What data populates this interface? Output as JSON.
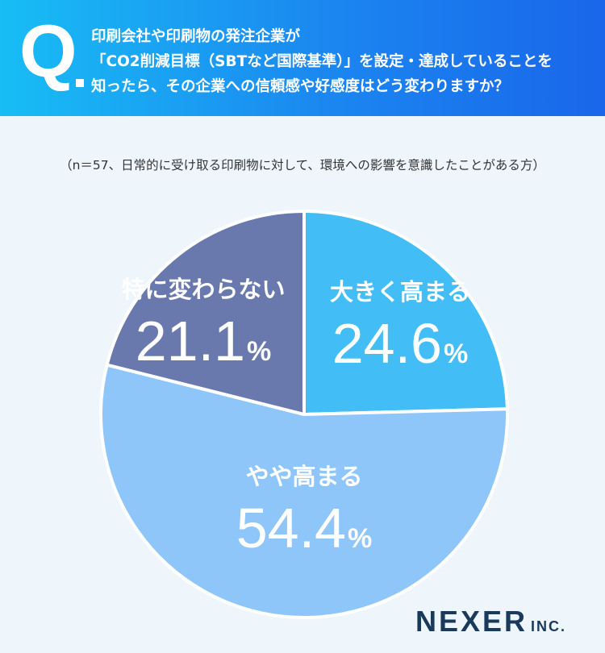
{
  "header": {
    "q_mark": "Q",
    "question_lines": [
      "印刷会社や印刷物の発注企業が",
      "「CO2削減目標（SBTなど国際基準）」を設定・達成していることを",
      "知ったら、その企業への信頼感や好感度はどう変わりますか？"
    ]
  },
  "note": "（n＝57、日常的に受け取る印刷物に対して、環境への影響を意識したことがある方）",
  "chart_data": {
    "type": "pie",
    "unit": "%",
    "slices": [
      {
        "label": "大きく高まる",
        "value": 24.6,
        "value_label": "24.6",
        "color": "#42bdf6"
      },
      {
        "label": "やや高まる",
        "value": 54.4,
        "value_label": "54.4",
        "color": "#8fc6f9"
      },
      {
        "label": "特に変わらない",
        "value": 21.1,
        "value_label": "21.1",
        "color": "#6978ad"
      }
    ]
  },
  "logo": {
    "main": "NEXER",
    "sub": "INC."
  }
}
